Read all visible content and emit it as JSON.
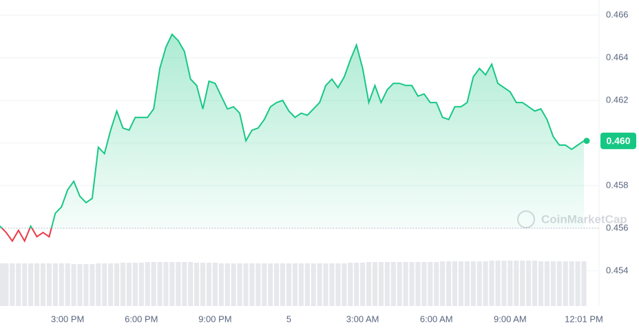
{
  "chart_data": {
    "type": "line",
    "categories": [
      null,
      null,
      null,
      null,
      null,
      null,
      null,
      null,
      null,
      null,
      null,
      "3:00 PM",
      null,
      null,
      null,
      null,
      null,
      null,
      null,
      null,
      null,
      null,
      null,
      "6:00 PM",
      null,
      null,
      null,
      null,
      null,
      null,
      null,
      null,
      null,
      null,
      null,
      "9:00 PM",
      null,
      null,
      null,
      null,
      null,
      null,
      null,
      null,
      null,
      null,
      null,
      "5",
      null,
      null,
      null,
      null,
      null,
      null,
      null,
      null,
      null,
      null,
      null,
      "3:00 AM",
      null,
      null,
      null,
      null,
      null,
      null,
      null,
      null,
      null,
      null,
      null,
      "6:00 AM",
      null,
      null,
      null,
      null,
      null,
      null,
      null,
      null,
      null,
      null,
      null,
      "9:00 AM",
      null,
      null,
      null,
      null,
      null,
      null,
      null,
      null,
      null,
      null,
      null,
      "12:01 PM"
    ],
    "values": [
      0.4561,
      0.4558,
      0.4554,
      0.4559,
      0.4554,
      0.4561,
      0.4556,
      0.4558,
      0.4556,
      0.4567,
      0.457,
      0.4578,
      0.4582,
      0.4575,
      0.4572,
      0.4574,
      0.4598,
      0.4595,
      0.4606,
      0.4615,
      0.4607,
      0.4606,
      0.4612,
      0.4612,
      0.4612,
      0.4616,
      0.4635,
      0.4645,
      0.4651,
      0.4648,
      0.4643,
      0.463,
      0.4627,
      0.4616,
      0.4629,
      0.4628,
      0.4622,
      0.4616,
      0.4617,
      0.4614,
      0.4601,
      0.4606,
      0.4607,
      0.4611,
      0.4617,
      0.4619,
      0.462,
      0.4615,
      0.4612,
      0.4614,
      0.4613,
      0.4616,
      0.4619,
      0.4627,
      0.463,
      0.4626,
      0.4631,
      0.4639,
      0.4646,
      0.4635,
      0.4619,
      0.4627,
      0.4619,
      0.4625,
      0.4628,
      0.4628,
      0.4627,
      0.4627,
      0.4622,
      0.4623,
      0.4619,
      0.4619,
      0.4612,
      0.4611,
      0.4617,
      0.4617,
      0.4619,
      0.4631,
      0.4635,
      0.4632,
      0.4637,
      0.4628,
      0.4626,
      0.4624,
      0.4619,
      0.4619,
      0.4617,
      0.4615,
      0.4616,
      0.4611,
      0.4603,
      0.4599,
      0.4599,
      0.4597,
      0.4599,
      0.4601
    ],
    "value_labels": {
      "95": "0.460"
    },
    "volume": [
      62,
      62,
      62,
      62,
      62,
      62,
      62,
      62,
      62,
      62,
      62,
      62,
      61,
      61,
      61,
      61,
      62,
      62,
      62,
      62,
      63,
      63,
      63,
      63,
      64,
      64,
      64,
      64,
      64,
      64,
      64,
      64,
      63,
      63,
      63,
      63,
      62,
      62,
      62,
      62,
      62,
      62,
      62,
      62,
      62,
      62,
      62,
      62,
      62,
      62,
      62,
      62,
      62,
      62,
      62,
      62,
      62,
      63,
      63,
      63,
      64,
      64,
      64,
      64,
      64,
      64,
      64,
      64,
      64,
      64,
      64,
      64,
      65,
      65,
      65,
      65,
      65,
      65,
      65,
      65,
      66,
      66,
      66,
      66,
      66,
      66,
      66,
      66,
      65,
      65,
      65,
      65,
      65,
      65,
      65,
      65
    ],
    "reference": 0.456,
    "up_color": "#16c784",
    "down_color": "#ea3943",
    "ylim": [
      0.45235,
      0.46671
    ],
    "yticks": [
      0.454,
      0.456,
      0.458,
      0.46,
      0.462,
      0.464,
      0.466
    ],
    "ytick_labels": [
      "0.454",
      "0.456",
      "0.458",
      "0.460",
      "0.462",
      "0.464",
      "0.466"
    ],
    "grid": true,
    "watermark": "CoinMarketCap"
  }
}
